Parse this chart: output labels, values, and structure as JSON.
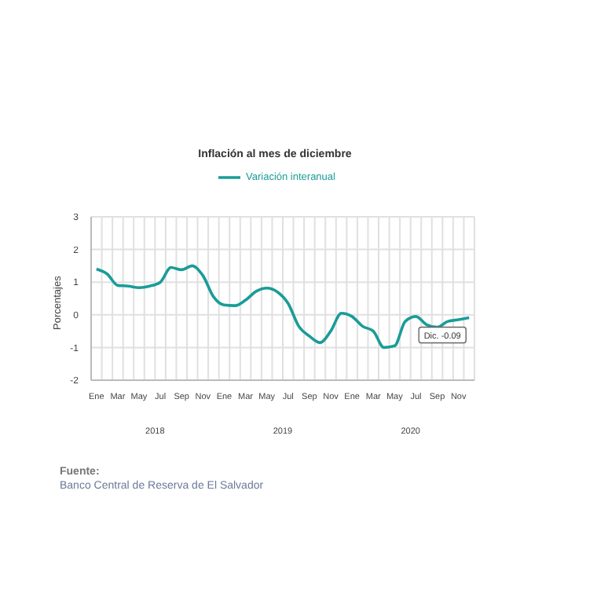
{
  "chart_data": {
    "type": "line",
    "title": "Inflación al mes de diciembre",
    "ylabel": "Porcentajes",
    "categories": [
      "Ene",
      null,
      "Mar",
      null,
      "May",
      null,
      "Jul",
      null,
      "Sep",
      null,
      "Nov",
      null,
      "Ene",
      null,
      "Mar",
      null,
      "May",
      null,
      "Jul",
      null,
      "Sep",
      null,
      "Nov",
      null,
      "Ene",
      null,
      "Mar",
      null,
      "May",
      null,
      "Jul",
      null,
      "Sep",
      null,
      "Nov",
      null
    ],
    "series": [
      {
        "name": "Variación interanual",
        "color": "#1a9c98",
        "values": [
          1.4,
          1.25,
          0.9,
          0.88,
          0.83,
          0.88,
          1.0,
          1.45,
          1.38,
          1.5,
          1.2,
          0.55,
          0.3,
          0.28,
          0.45,
          0.72,
          0.82,
          0.7,
          0.35,
          -0.35,
          -0.65,
          -0.85,
          -0.5,
          0.05,
          -0.05,
          -0.35,
          -0.5,
          -1.0,
          -0.95,
          -0.2,
          -0.05,
          -0.3,
          -0.38,
          -0.2,
          -0.15,
          -0.09
        ]
      }
    ],
    "ylim": [
      -2,
      3
    ],
    "yticks": [
      -2,
      -1,
      0,
      1,
      2,
      3
    ],
    "grid": true,
    "legend": "top",
    "marker": "none",
    "line_style": "solid",
    "annotations": [
      {
        "text": "Dic. -0.09",
        "y": -0.09
      },
      "2018",
      "2019",
      "2020",
      "Fuente:",
      "Banco Central de Reserva de El Salvador"
    ]
  }
}
